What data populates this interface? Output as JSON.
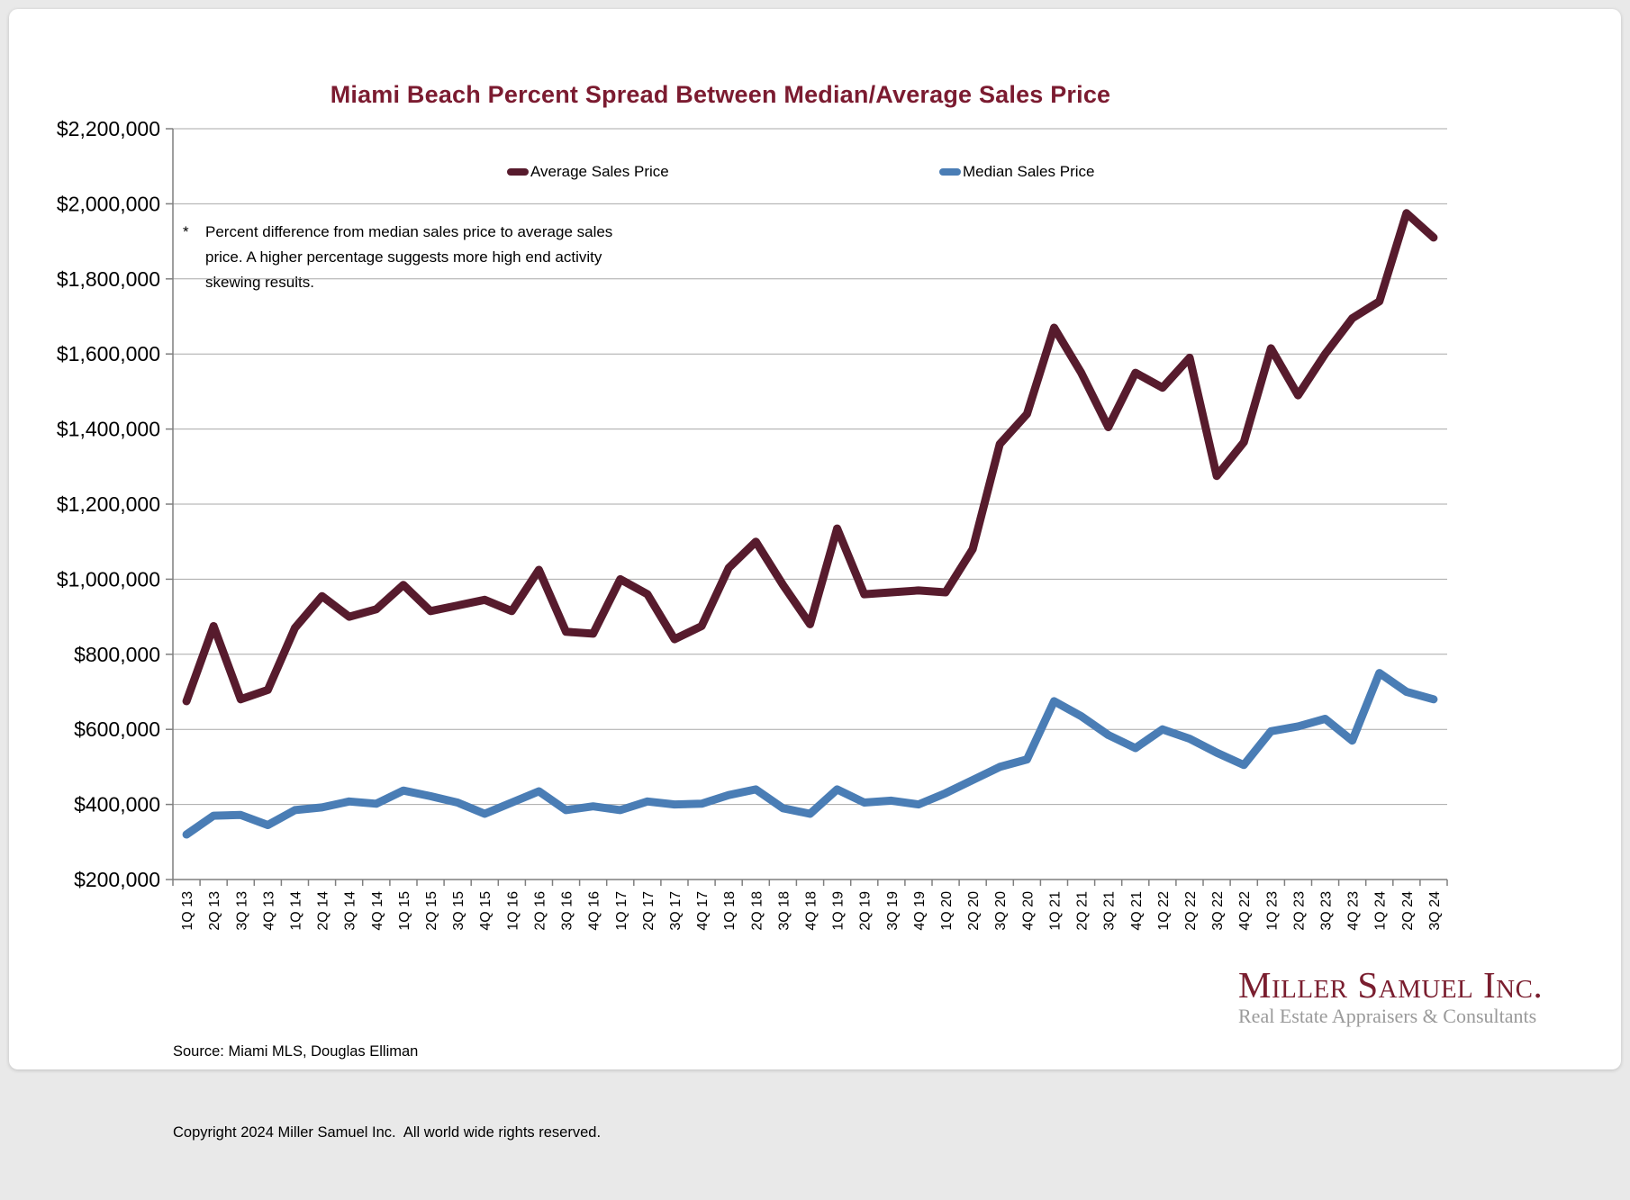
{
  "note": {
    "marker": "*",
    "text": "Percent difference from median sales price to average sales price. A higher percentage suggests more high end activity skewing results."
  },
  "chart_data": {
    "type": "line",
    "title": "Miami Beach Percent Spread Between Median/Average Sales Price",
    "categories": [
      "1Q 13",
      "2Q 13",
      "3Q 13",
      "4Q 13",
      "1Q 14",
      "2Q 14",
      "3Q 14",
      "4Q 14",
      "1Q 15",
      "2Q 15",
      "3Q 15",
      "4Q 15",
      "1Q 16",
      "2Q 16",
      "3Q 16",
      "4Q 16",
      "1Q 17",
      "2Q 17",
      "3Q 17",
      "4Q 17",
      "1Q 18",
      "2Q 18",
      "3Q 18",
      "4Q 18",
      "1Q 19",
      "2Q 19",
      "3Q 19",
      "4Q 19",
      "1Q 20",
      "2Q 20",
      "3Q 20",
      "4Q 20",
      "1Q 21",
      "2Q 21",
      "3Q 21",
      "4Q 21",
      "1Q 22",
      "2Q 22",
      "3Q 22",
      "4Q 22",
      "1Q 23",
      "2Q 23",
      "3Q 23",
      "4Q 23",
      "1Q 24",
      "2Q 24",
      "3Q 24"
    ],
    "series": [
      {
        "name": "Average Sales Price",
        "color": "#571B2D",
        "values": [
          675000,
          875000,
          680000,
          705000,
          870000,
          955000,
          900000,
          920000,
          985000,
          915000,
          930000,
          945000,
          915000,
          1025000,
          860000,
          855000,
          1000000,
          960000,
          840000,
          875000,
          1030000,
          1100000,
          985000,
          880000,
          1135000,
          960000,
          965000,
          970000,
          965000,
          1080000,
          1360000,
          1440000,
          1670000,
          1550000,
          1405000,
          1550000,
          1510000,
          1590000,
          1275000,
          1365000,
          1615000,
          1490000,
          1600000,
          1695000,
          1740000,
          1975000,
          1910000
        ]
      },
      {
        "name": "Median Sales Price",
        "color": "#4A7DB5",
        "values": [
          320000,
          370000,
          372000,
          345000,
          385000,
          392000,
          408000,
          402000,
          437000,
          422000,
          405000,
          375000,
          405000,
          435000,
          385000,
          395000,
          385000,
          408000,
          400000,
          402000,
          425000,
          440000,
          390000,
          375000,
          440000,
          405000,
          410000,
          400000,
          430000,
          465000,
          500000,
          520000,
          675000,
          635000,
          585000,
          550000,
          600000,
          575000,
          538000,
          505000,
          595000,
          608000,
          628000,
          570000,
          750000,
          700000,
          680000
        ]
      }
    ],
    "ylim": [
      200000,
      2200000
    ],
    "y_tick_interval": 200000,
    "y_tick_labels": [
      "$2,200,000",
      "$2,000,000",
      "$1,800,000",
      "$1,600,000",
      "$1,400,000",
      "$1,200,000",
      "$1,000,000",
      "$800,000",
      "$600,000",
      "$400,000",
      "$200,000"
    ],
    "grid": true,
    "legend_position": "top-inside",
    "colors": {
      "title": "#7B1B30",
      "gridline": "#A8A8A8",
      "axis": "#7F7F7F",
      "text": "#000000"
    }
  },
  "footer": {
    "source": "Source: Miami MLS, Douglas Elliman",
    "copyright": "Copyright 2024 Miller Samuel Inc.  All world wide rights reserved."
  },
  "logo": {
    "name": "Miller Samuel Inc.",
    "tagline": "Real Estate Appraisers & Consultants"
  }
}
